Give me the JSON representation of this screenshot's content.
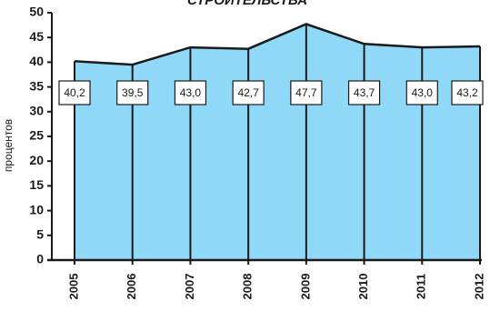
{
  "chart_data": {
    "type": "area",
    "title": "СТРОИТЕЛЬСТВА",
    "y_label": "процентов",
    "categories": [
      "2005",
      "2006",
      "2007",
      "2008",
      "2009",
      "2010",
      "2011",
      "2012"
    ],
    "values": [
      40.2,
      39.5,
      43.0,
      42.7,
      47.7,
      43.7,
      43.0,
      43.2
    ],
    "value_labels": [
      "40,2",
      "39,5",
      "43,0",
      "42,7",
      "47,7",
      "43,7",
      "43,0",
      "43,2"
    ],
    "color": "#8fd8f8",
    "ylim": [
      0,
      50
    ],
    "yticks": [
      0,
      5,
      10,
      15,
      20,
      25,
      30,
      35,
      40,
      45,
      50
    ]
  }
}
